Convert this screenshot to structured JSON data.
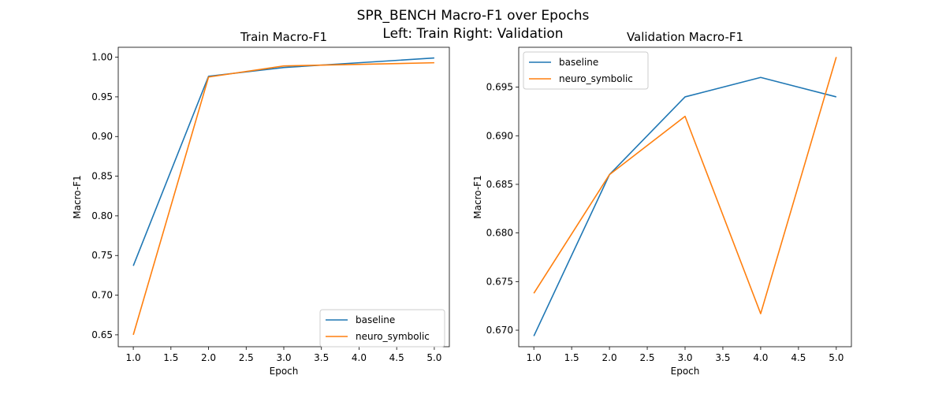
{
  "figure": {
    "suptitle_line1": "SPR_BENCH Macro-F1 over Epochs",
    "suptitle_line2": "Left: Train   Right: Validation"
  },
  "colors": {
    "baseline": "#1f77b4",
    "neuro_symbolic": "#ff7f0e"
  },
  "chart_data": [
    {
      "type": "line",
      "title": "Train Macro-F1",
      "xlabel": "Epoch",
      "ylabel": "Macro-F1",
      "x": [
        1,
        2,
        3,
        4,
        5
      ],
      "xlim": [
        0.8,
        5.2
      ],
      "ylim": [
        0.635,
        1.0125
      ],
      "xticks": [
        "1.0",
        "1.5",
        "2.0",
        "2.5",
        "3.0",
        "3.5",
        "4.0",
        "4.5",
        "5.0"
      ],
      "yticks": [
        "0.65",
        "0.70",
        "0.75",
        "0.80",
        "0.85",
        "0.90",
        "0.95",
        "1.00"
      ],
      "legend": "lower right",
      "grid": false,
      "series": [
        {
          "name": "baseline",
          "values": [
            0.737,
            0.976,
            0.987,
            0.993,
            0.999
          ]
        },
        {
          "name": "neuro_symbolic",
          "values": [
            0.65,
            0.975,
            0.989,
            0.991,
            0.993
          ]
        }
      ]
    },
    {
      "type": "line",
      "title": "Validation Macro-F1",
      "xlabel": "Epoch",
      "ylabel": "Macro-F1",
      "x": [
        1,
        2,
        3,
        4,
        5
      ],
      "xlim": [
        0.8,
        5.2
      ],
      "ylim": [
        0.6683,
        0.6991
      ],
      "xticks": [
        "1.0",
        "1.5",
        "2.0",
        "2.5",
        "3.0",
        "3.5",
        "4.0",
        "4.5",
        "5.0"
      ],
      "yticks": [
        "0.670",
        "0.675",
        "0.680",
        "0.685",
        "0.690",
        "0.695"
      ],
      "legend": "upper left",
      "grid": false,
      "series": [
        {
          "name": "baseline",
          "values": [
            0.6694,
            0.686,
            0.694,
            0.696,
            0.694
          ]
        },
        {
          "name": "neuro_symbolic",
          "values": [
            0.6738,
            0.686,
            0.692,
            0.6717,
            0.6981
          ]
        }
      ]
    }
  ]
}
